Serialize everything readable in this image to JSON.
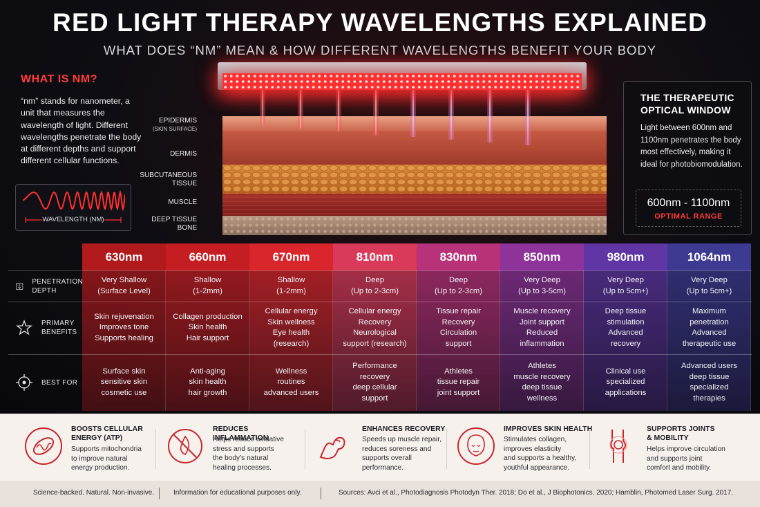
{
  "title": "RED LIGHT THERAPY WAVELENGTHS EXPLAINED",
  "subtitle": "WHAT DOES “NM” MEAN & HOW DIFFERENT WAVELENGTHS BENEFIT YOUR BODY",
  "what_is_nm": {
    "heading": "WHAT IS NM?",
    "body": "“nm” stands for nanometer, a unit that measures the wavelength of light. Different wavelengths penetrate the body at different depths and support different cellular functions.",
    "wave_label": "WAVELENGTH (NM)"
  },
  "tissue_layers": {
    "epidermis": "EPIDERMIS",
    "epidermis_sub": "(SKIN SURFACE)",
    "dermis": "DERMIS",
    "subcutaneous_1": "SUBCUTANEOUS",
    "subcutaneous_2": "TISSUE",
    "muscle": "MUSCLE",
    "deep_1": "DEEP TISSUE",
    "deep_2": "BONE"
  },
  "optical_window": {
    "title": "THE THERAPEUTIC OPTICAL WINDOW",
    "body": "Light between 600nm and 1100nm penetrates the body most effectively, making it ideal for photobiomodulation.",
    "range": "600nm - 1100nm",
    "range_label": "OPTIMAL RANGE"
  },
  "table": {
    "row_labels": {
      "penetration_1": "PENETRATION",
      "penetration_2": "DEPTH",
      "benefits_1": "PRIMARY",
      "benefits_2": "BENEFITS",
      "best_for": "BEST FOR"
    },
    "columns": [
      {
        "wavelength": "630nm",
        "color": "#b11a1d",
        "depth": [
          "Very Shallow",
          "(Surface Level)"
        ],
        "benefits": [
          "Skin rejuvenation",
          "Improves tone",
          "Supports healing"
        ],
        "best_for": [
          "Surface skin",
          "sensitive skin",
          "cosmetic use"
        ]
      },
      {
        "wavelength": "660nm",
        "color": "#c41d22",
        "depth": [
          "Shallow",
          "(1-2mm)"
        ],
        "benefits": [
          "Collagen production",
          "Skin health",
          "Hair support"
        ],
        "best_for": [
          "Anti-aging",
          "skin health",
          "hair growth"
        ]
      },
      {
        "wavelength": "670nm",
        "color": "#d8262c",
        "depth": [
          "Shallow",
          "(1-2mm)"
        ],
        "benefits": [
          "Cellular energy",
          "Skin wellness",
          "Eye health",
          "(research)"
        ],
        "best_for": [
          "Wellness",
          "routines",
          "advanced users"
        ]
      },
      {
        "wavelength": "810nm",
        "color": "#d93a5a",
        "depth": [
          "Deep",
          "(Up to 2-3cm)"
        ],
        "benefits": [
          "Cellular energy",
          "Recovery",
          "Neurological",
          "support (research)"
        ],
        "best_for": [
          "Performance",
          "recovery",
          "deep cellular",
          "support"
        ]
      },
      {
        "wavelength": "830nm",
        "color": "#b8327a",
        "depth": [
          "Deep",
          "(Up to 2-3cm)"
        ],
        "benefits": [
          "Tissue repair",
          "Recovery",
          "Circulation",
          "support"
        ],
        "best_for": [
          "Athletes",
          "tissue repair",
          "joint support"
        ]
      },
      {
        "wavelength": "850nm",
        "color": "#8e339a",
        "depth": [
          "Very Deep",
          "(Up to 3-5cm)"
        ],
        "benefits": [
          "Muscle recovery",
          "Joint support",
          "Reduced",
          "inflammation"
        ],
        "best_for": [
          "Athletes",
          "muscle recovery",
          "deep tissue",
          "wellness"
        ]
      },
      {
        "wavelength": "980nm",
        "color": "#5e35a3",
        "depth": [
          "Very Deep",
          "(Up to 5cm+)"
        ],
        "benefits": [
          "Deep tissue",
          "stimulation",
          "Advanced",
          "recovery"
        ],
        "best_for": [
          "Clinical use",
          "specialized",
          "applications"
        ]
      },
      {
        "wavelength": "1064nm",
        "color": "#3d3a92",
        "depth": [
          "Very Deep",
          "(Up to 5cm+)"
        ],
        "benefits": [
          "Maximum",
          "penetration",
          "Advanced",
          "therapeutic use"
        ],
        "best_for": [
          "Advanced users",
          "deep tissue",
          "specialized",
          "therapies"
        ]
      }
    ]
  },
  "benefits_bar": [
    {
      "icon": "mitochondria-icon",
      "title": [
        "BOOSTS CELLULAR",
        "ENERGY (ATP)"
      ],
      "desc": [
        "Supports mitochondria",
        "to improve natural",
        "energy production."
      ]
    },
    {
      "icon": "no-inflammation-icon",
      "title": [
        "REDUCES INFLAMMATION"
      ],
      "desc": [
        "Helps reduce oxidative",
        "stress and supports",
        "the body’s natural",
        "healing processes."
      ]
    },
    {
      "icon": "flexed-arm-icon",
      "title": [
        "ENHANCES RECOVERY"
      ],
      "desc": [
        "Speeds up muscle repair,",
        "reduces soreness and",
        "supports overall",
        "performance."
      ]
    },
    {
      "icon": "face-icon",
      "title": [
        "IMPROVES SKIN HEALTH"
      ],
      "desc": [
        "Stimulates collagen,",
        "improves elasticity",
        "and supports a healthy,",
        "youthful appearance."
      ]
    },
    {
      "icon": "knee-joint-icon",
      "title": [
        "SUPPORTS JOINTS",
        "& MOBILITY"
      ],
      "desc": [
        "Helps improve circulation",
        "and supports joint",
        "comfort and mobility."
      ]
    }
  ],
  "footer": {
    "tagline": "Science-backed. Natural. Non-invasive.",
    "disclaimer": "Information for educational purposes only.",
    "sources": "Sources: Avci et al., Photodiagnosis Photodyn Ther. 2018; Do et al., J Biophotonics. 2020; Hamblin, Photomed Laser Surg. 2017."
  },
  "accent_color": "#ff3b3b"
}
